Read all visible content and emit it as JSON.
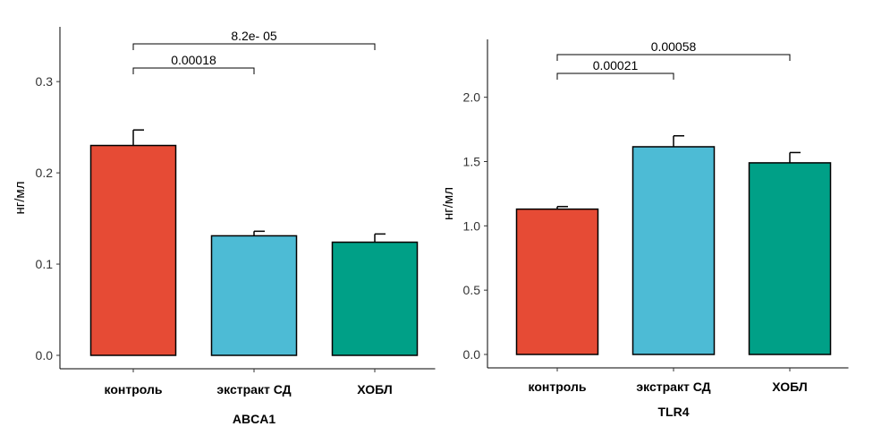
{
  "chart_data": [
    {
      "type": "bar",
      "title": "ABCA1",
      "ylabel": "нг/мл",
      "categories": [
        "контроль",
        "экстракт СД",
        "ХОБЛ"
      ],
      "values": [
        0.23,
        0.131,
        0.124
      ],
      "errors": [
        0.017,
        0.005,
        0.009
      ],
      "colors": [
        "#E64B35",
        "#4DBBD5",
        "#00A087"
      ],
      "yticks": [
        "0.0",
        "0.1",
        "0.2",
        "0.3"
      ],
      "ylim": [
        0,
        0.36
      ],
      "comparisons": [
        {
          "from": 0,
          "to": 1,
          "label": "0.00018"
        },
        {
          "from": 0,
          "to": 2,
          "label": "8.2e- 05"
        }
      ]
    },
    {
      "type": "bar",
      "title": "TLR4",
      "ylabel": "нг/мл",
      "categories": [
        "контроль",
        "экстракт СД",
        "ХОБЛ"
      ],
      "values": [
        1.13,
        1.615,
        1.49
      ],
      "errors": [
        0.02,
        0.085,
        0.08
      ],
      "colors": [
        "#E64B35",
        "#4DBBD5",
        "#00A087"
      ],
      "yticks": [
        "0.0",
        "0.5",
        "1.0",
        "1.5",
        "2.0"
      ],
      "ylim": [
        0,
        2.45
      ],
      "comparisons": [
        {
          "from": 0,
          "to": 1,
          "label": "0.00021"
        },
        {
          "from": 0,
          "to": 2,
          "label": "0.00058"
        }
      ]
    }
  ]
}
